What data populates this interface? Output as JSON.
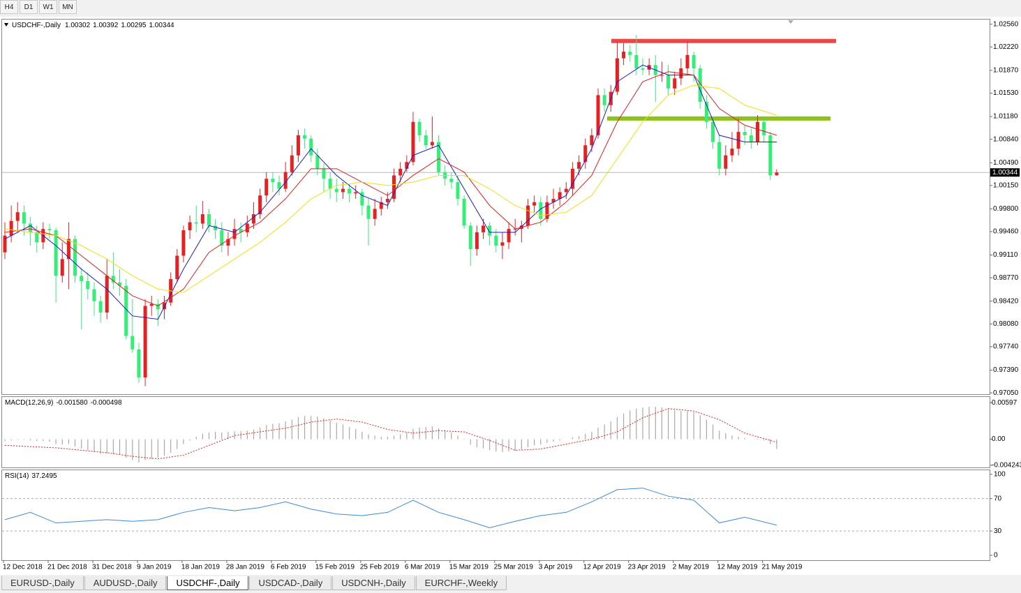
{
  "toolbar": {
    "buttons": [
      "H4",
      "D1",
      "W1",
      "MN"
    ]
  },
  "chart_data": {
    "type": "candlestick",
    "title": "USDCHF-,Daily",
    "bull_color": "#e52222",
    "bear_color": "#33ee77",
    "ylim": [
      0.9702,
      1.0263
    ],
    "yticks": [
      {
        "value": 1.0256,
        "label": "1.02560"
      },
      {
        "value": 1.0222,
        "label": "1.02220"
      },
      {
        "value": 1.0187,
        "label": "1.01870"
      },
      {
        "value": 1.0153,
        "label": "1.01530"
      },
      {
        "value": 1.0118,
        "label": "1.01180"
      },
      {
        "value": 1.0084,
        "label": "1.00840"
      },
      {
        "value": 1.0049,
        "label": "1.00490"
      },
      {
        "value": 1.0015,
        "label": "1.00150"
      },
      {
        "value": 0.998,
        "label": "0.99800"
      },
      {
        "value": 0.9946,
        "label": "0.99460"
      },
      {
        "value": 0.9911,
        "label": "0.99110"
      },
      {
        "value": 0.9877,
        "label": "0.98770"
      },
      {
        "value": 0.9842,
        "label": "0.98420"
      },
      {
        "value": 0.9808,
        "label": "0.98080"
      },
      {
        "value": 0.9774,
        "label": "0.97740"
      },
      {
        "value": 0.9739,
        "label": "0.97390"
      },
      {
        "value": 0.9705,
        "label": "0.97050"
      }
    ],
    "x_labels": [
      "12 Dec 2018",
      "21 Dec 2018",
      "31 Dec 2018",
      "9 Jan 2019",
      "18 Jan 2019",
      "28 Jan 2019",
      "6 Feb 2019",
      "15 Feb 2019",
      "25 Feb 2019",
      "6 Mar 2019",
      "15 Mar 2019",
      "25 Mar 2019",
      "3 Apr 2019",
      "12 Apr 2019",
      "23 Apr 2019",
      "2 May 2019",
      "12 May 2019",
      "21 May 2019"
    ],
    "current_price": 1.00344,
    "ohlc": [
      [
        0.9915,
        0.996,
        0.9905,
        0.994
      ],
      [
        0.994,
        0.9985,
        0.993,
        0.9962
      ],
      [
        0.9962,
        0.999,
        0.9945,
        0.9975
      ],
      [
        0.9975,
        0.9985,
        0.994,
        0.9958
      ],
      [
        0.9958,
        0.9968,
        0.9925,
        0.9945
      ],
      [
        0.9945,
        0.9955,
        0.9915,
        0.993
      ],
      [
        0.993,
        0.996,
        0.992,
        0.995
      ],
      [
        0.995,
        0.9958,
        0.9935,
        0.9948
      ],
      [
        0.9948,
        0.9952,
        0.984,
        0.988
      ],
      [
        0.988,
        0.993,
        0.987,
        0.9905
      ],
      [
        0.9905,
        0.996,
        0.986,
        0.9935
      ],
      [
        0.9935,
        0.994,
        0.987,
        0.988
      ],
      [
        0.988,
        0.9892,
        0.98,
        0.9872
      ],
      [
        0.9872,
        0.9885,
        0.9845,
        0.986
      ],
      [
        0.986,
        0.987,
        0.982,
        0.9842
      ],
      [
        0.9842,
        0.985,
        0.981,
        0.9825
      ],
      [
        0.9825,
        0.9905,
        0.9815,
        0.988
      ],
      [
        0.988,
        0.9915,
        0.986,
        0.987
      ],
      [
        0.987,
        0.989,
        0.985,
        0.9865
      ],
      [
        0.9865,
        0.9875,
        0.9785,
        0.979
      ],
      [
        0.979,
        0.9845,
        0.9765,
        0.977
      ],
      [
        0.977,
        0.978,
        0.972,
        0.9728
      ],
      [
        0.9728,
        0.9845,
        0.9715,
        0.9835
      ],
      [
        0.9835,
        0.985,
        0.982,
        0.9838
      ],
      [
        0.9838,
        0.9845,
        0.9805,
        0.983
      ],
      [
        0.983,
        0.985,
        0.9815,
        0.984
      ],
      [
        0.984,
        0.9885,
        0.9835,
        0.9875
      ],
      [
        0.9875,
        0.992,
        0.987,
        0.991
      ],
      [
        0.991,
        0.9955,
        0.99,
        0.9948
      ],
      [
        0.9948,
        0.997,
        0.9935,
        0.996
      ],
      [
        0.996,
        0.9985,
        0.9945,
        0.9958
      ],
      [
        0.9958,
        0.9992,
        0.995,
        0.9972
      ],
      [
        0.9972,
        0.998,
        0.9945,
        0.9955
      ],
      [
        0.9955,
        0.9965,
        0.9935,
        0.9948
      ],
      [
        0.9948,
        0.996,
        0.9915,
        0.9925
      ],
      [
        0.9925,
        0.9945,
        0.991,
        0.9935
      ],
      [
        0.9935,
        0.9965,
        0.9925,
        0.995
      ],
      [
        0.995,
        0.996,
        0.993,
        0.9945
      ],
      [
        0.9945,
        0.997,
        0.9938,
        0.9958
      ],
      [
        0.9958,
        0.999,
        0.995,
        0.9972
      ],
      [
        0.9972,
        1.001,
        0.9965,
        1.0
      ],
      [
        1.0,
        1.0035,
        0.999,
        1.0025
      ],
      [
        1.0025,
        1.0035,
        1.0005,
        1.002
      ],
      [
        1.002,
        1.003,
        1.0,
        1.001
      ],
      [
        1.001,
        1.005,
        1.0005,
        1.0035
      ],
      [
        1.0035,
        1.0075,
        1.003,
        1.006
      ],
      [
        1.006,
        1.0098,
        1.005,
        1.009
      ],
      [
        1.009,
        1.01,
        1.007,
        1.0085
      ],
      [
        1.0085,
        1.009,
        1.005,
        1.006
      ],
      [
        1.006,
        1.007,
        1.003,
        1.004
      ],
      [
        1.004,
        1.0048,
        1.0005,
        1.0025
      ],
      [
        1.0025,
        1.0035,
        0.9995,
        1.001
      ],
      [
        1.001,
        1.0025,
        0.999,
        1.0005
      ],
      [
        1.0005,
        1.002,
        0.9995,
        1.001
      ],
      [
        1.001,
        1.0018,
        0.999,
        1.0003
      ],
      [
        1.0003,
        1.0015,
        0.9995,
        1.0005
      ],
      [
        1.0005,
        1.001,
        0.997,
        0.9985
      ],
      [
        0.9985,
        0.9995,
        0.9925,
        0.9965
      ],
      [
        0.9965,
        0.9995,
        0.9955,
        0.998
      ],
      [
        0.998,
        0.9998,
        0.997,
        0.999
      ],
      [
        0.999,
        1.0005,
        0.998,
        0.9995
      ],
      [
        0.9995,
        1.004,
        0.999,
        1.003
      ],
      [
        1.003,
        1.005,
        1.002,
        1.004
      ],
      [
        1.004,
        1.006,
        1.0035,
        1.005
      ],
      [
        1.005,
        1.0125,
        1.0045,
        1.011
      ],
      [
        1.011,
        1.0115,
        1.008,
        1.009
      ],
      [
        1.009,
        1.0098,
        1.007,
        1.0075
      ],
      [
        1.0075,
        1.0118,
        1.007,
        1.008
      ],
      [
        1.008,
        1.009,
        1.003,
        1.0035
      ],
      [
        1.0035,
        1.0045,
        1.0015,
        1.0025
      ],
      [
        1.0025,
        1.0035,
        1.001,
        1.002
      ],
      [
        1.002,
        1.003,
        0.9985,
        0.9995
      ],
      [
        0.9995,
        1.0,
        0.995,
        0.9955
      ],
      [
        0.9955,
        0.996,
        0.9895,
        0.992
      ],
      [
        0.992,
        0.9955,
        0.991,
        0.9945
      ],
      [
        0.9945,
        0.9965,
        0.9935,
        0.9955
      ],
      [
        0.9955,
        0.996,
        0.9925,
        0.994
      ],
      [
        0.994,
        0.995,
        0.9915,
        0.9925
      ],
      [
        0.9925,
        0.9945,
        0.9905,
        0.993
      ],
      [
        0.993,
        0.996,
        0.992,
        0.995
      ],
      [
        0.995,
        0.9965,
        0.994,
        0.995
      ],
      [
        0.995,
        0.9962,
        0.993,
        0.9955
      ],
      [
        0.9955,
        0.9995,
        0.995,
        0.9985
      ],
      [
        0.9985,
        1.0,
        0.9975,
        0.999
      ],
      [
        0.999,
        0.9998,
        0.9955,
        0.9965
      ],
      [
        0.9965,
        1.0,
        0.996,
        0.999
      ],
      [
        0.999,
        1.001,
        0.998,
        0.9995
      ],
      [
        0.9995,
        1.0012,
        0.9985,
        1.0005
      ],
      [
        1.0005,
        1.002,
        0.9995,
        1.001
      ],
      [
        1.001,
        1.005,
        1.0,
        1.004
      ],
      [
        1.004,
        1.006,
        1.003,
        1.005
      ],
      [
        1.005,
        1.0085,
        1.004,
        1.0075
      ],
      [
        1.0075,
        1.01,
        1.0065,
        1.009
      ],
      [
        1.009,
        1.016,
        1.0085,
        1.015
      ],
      [
        1.015,
        1.016,
        1.0125,
        1.0135
      ],
      [
        1.0135,
        1.0165,
        1.0125,
        1.0155
      ],
      [
        1.0155,
        1.023,
        1.015,
        1.0205
      ],
      [
        1.0205,
        1.0228,
        1.0195,
        1.0215
      ],
      [
        1.0215,
        1.0225,
        1.02,
        1.021
      ],
      [
        1.021,
        1.024,
        1.018,
        1.019
      ],
      [
        1.019,
        1.0205,
        1.018,
        1.0188
      ],
      [
        1.0188,
        1.0205,
        1.018,
        1.0195
      ],
      [
        1.0195,
        1.021,
        1.014,
        1.018
      ],
      [
        1.018,
        1.02,
        1.017,
        1.018
      ],
      [
        1.018,
        1.0195,
        1.015,
        1.016
      ],
      [
        1.016,
        1.0185,
        1.015,
        1.0175
      ],
      [
        1.0175,
        1.0205,
        1.0165,
        1.019
      ],
      [
        1.019,
        1.023,
        1.018,
        1.021
      ],
      [
        1.021,
        1.0215,
        1.017,
        1.019
      ],
      [
        1.019,
        1.0195,
        1.013,
        1.014
      ],
      [
        1.014,
        1.015,
        1.01,
        1.011
      ],
      [
        1.011,
        1.0118,
        1.007,
        1.008
      ],
      [
        1.008,
        1.009,
        1.003,
        1.004
      ],
      [
        1.004,
        1.0075,
        1.003,
        1.006
      ],
      [
        1.006,
        1.0095,
        1.005,
        1.007
      ],
      [
        1.007,
        1.0115,
        1.006,
        1.0095
      ],
      [
        1.0095,
        1.0105,
        1.0075,
        1.009
      ],
      [
        1.009,
        1.01,
        1.007,
        1.008
      ],
      [
        1.008,
        1.012,
        1.0075,
        1.011
      ],
      [
        1.011,
        1.0115,
        1.008,
        1.009
      ],
      [
        1.009,
        1.0095,
        1.0023,
        1.003
      ],
      [
        1.00302,
        1.00392,
        1.00295,
        1.00344
      ]
    ],
    "levels": [
      {
        "value": 1.0231,
        "color": "#f04545"
      },
      {
        "value": 1.0115,
        "color": "#8cc21a"
      }
    ],
    "ma": {
      "x": [
        0,
        4,
        8,
        12,
        16,
        20,
        24,
        28,
        32,
        36,
        40,
        44,
        48,
        52,
        56,
        60,
        64,
        68,
        72,
        76,
        80,
        84,
        88,
        92,
        96,
        100,
        104,
        108,
        112,
        116,
        121
      ],
      "series": [
        {
          "color": "#1a1acc",
          "values": [
            0.9935,
            0.9955,
            0.9925,
            0.989,
            0.986,
            0.982,
            0.9815,
            0.989,
            0.9955,
            0.9945,
            0.9975,
            1.002,
            1.007,
            1.003,
            1.0,
            0.9985,
            1.006,
            1.0075,
            1.001,
            0.9945,
            0.9945,
            0.998,
            1.0,
            1.007,
            1.017,
            1.0195,
            1.018,
            1.018,
            1.009,
            1.008,
            1.008
          ]
        },
        {
          "color": "#e02020",
          "values": [
            0.9945,
            0.995,
            0.994,
            0.991,
            0.988,
            0.985,
            0.9835,
            0.986,
            0.9915,
            0.994,
            0.996,
            0.9995,
            1.004,
            1.004,
            1.002,
            1.0,
            1.003,
            1.0055,
            1.0035,
            0.9985,
            0.995,
            0.996,
            0.999,
            1.003,
            1.011,
            1.017,
            1.0185,
            1.018,
            1.013,
            1.0105,
            1.009
          ]
        },
        {
          "color": "#f0e010",
          "values": [
            0.995,
            0.9945,
            0.994,
            0.9925,
            0.9905,
            0.988,
            0.986,
            0.9855,
            0.988,
            0.9905,
            0.993,
            0.996,
            0.9995,
            1.0015,
            1.002,
            1.0015,
            1.002,
            1.003,
            1.003,
            1.001,
            0.9985,
            0.997,
            0.9975,
            1.0,
            1.0055,
            1.011,
            1.015,
            1.0165,
            1.016,
            1.0135,
            1.012
          ]
        }
      ]
    },
    "macd": {
      "name": "MACD(12,26,9)",
      "header_values": [
        {
          "value": -0.00158,
          "label": "-0.001580"
        },
        -0.000498
      ],
      "ylim": [
        -0.0046,
        0.0069
      ],
      "yticks": [
        0.00597,
        {
          "value": 0,
          "label": "0.00"
        },
        -0.004243
      ],
      "histogram_color": "#a8a8a8",
      "signal_color": "#e02020",
      "histogram": [
        -0.0003,
        -0.0002,
        -0.0001,
        -0.0001,
        -0.0002,
        -0.0003,
        -0.0003,
        -0.0004,
        -0.0008,
        -0.0009,
        -0.0008,
        -0.0012,
        -0.0015,
        -0.0018,
        -0.0021,
        -0.0024,
        -0.0023,
        -0.0024,
        -0.0025,
        -0.003,
        -0.0034,
        -0.0038,
        -0.0034,
        -0.0032,
        -0.003,
        -0.0027,
        -0.0022,
        -0.0016,
        -0.0008,
        -0.0002,
        0.0004,
        0.0009,
        0.0011,
        0.0012,
        0.0011,
        0.0012,
        0.0013,
        0.0013,
        0.0014,
        0.0016,
        0.0019,
        0.0023,
        0.0025,
        0.0026,
        0.0029,
        0.0032,
        0.0036,
        0.0038,
        0.0038,
        0.0037,
        0.0034,
        0.0031,
        0.0027,
        0.0024,
        0.002,
        0.0017,
        0.0012,
        0.0008,
        0.0006,
        0.0004,
        0.0004,
        0.0006,
        0.0008,
        0.0011,
        0.0017,
        0.0019,
        0.002,
        0.0021,
        0.0018,
        0.0015,
        0.0011,
        0.0006,
        -0.0001,
        -0.0009,
        -0.0013,
        -0.0015,
        -0.0018,
        -0.002,
        -0.0021,
        -0.002,
        -0.0019,
        -0.0017,
        -0.0013,
        -0.001,
        -0.0009,
        -0.0006,
        -0.0004,
        -0.0002,
        0,
        0.0003,
        0.0005,
        0.0009,
        0.0012,
        0.0019,
        0.0024,
        0.0029,
        0.0036,
        0.0042,
        0.0047,
        0.005,
        0.0052,
        0.0053,
        0.0053,
        0.0052,
        0.0049,
        0.0047,
        0.0046,
        0.0046,
        0.0044,
        0.0039,
        0.0032,
        0.0024,
        0.0014,
        0.001,
        0.0006,
        0.0004,
        0.0002,
        0,
        -0.0001,
        -0.0002,
        -0.0008,
        -0.0016
      ],
      "signal": [
        -0.001,
        -0.0012,
        -0.0014,
        -0.0018,
        -0.0022,
        -0.0028,
        -0.0032,
        -0.0026,
        -0.001,
        0.0006,
        0.0012,
        0.0018,
        0.0028,
        0.0033,
        0.0028,
        0.0016,
        0.001,
        0.0014,
        0.0012,
        -0.0002,
        -0.0018,
        -0.0016,
        -0.0008,
        0,
        0.0012,
        0.0035,
        0.005,
        0.0046,
        0.0032,
        0.001,
        -0.0005
      ]
    },
    "rsi": {
      "name": "RSI(14)",
      "color": "#3a8ad8",
      "ylim": [
        -6,
        105
      ],
      "yticks": [
        100,
        70,
        30,
        0
      ],
      "values": [
        44,
        53,
        40,
        42,
        44,
        42,
        44,
        53,
        59,
        55,
        59,
        66,
        57,
        51,
        49,
        53,
        68,
        53,
        44,
        34,
        42,
        49,
        53,
        66,
        81,
        83,
        73,
        68,
        40,
        47,
        37.2495
      ]
    }
  },
  "tabs": {
    "items": [
      "EURUSD-,Daily",
      "AUDUSD-,Daily",
      "USDCHF-,Daily",
      "USDCAD-,Daily",
      "USDCNH-,Daily",
      "EURCHF-,Weekly"
    ],
    "active": 2
  }
}
